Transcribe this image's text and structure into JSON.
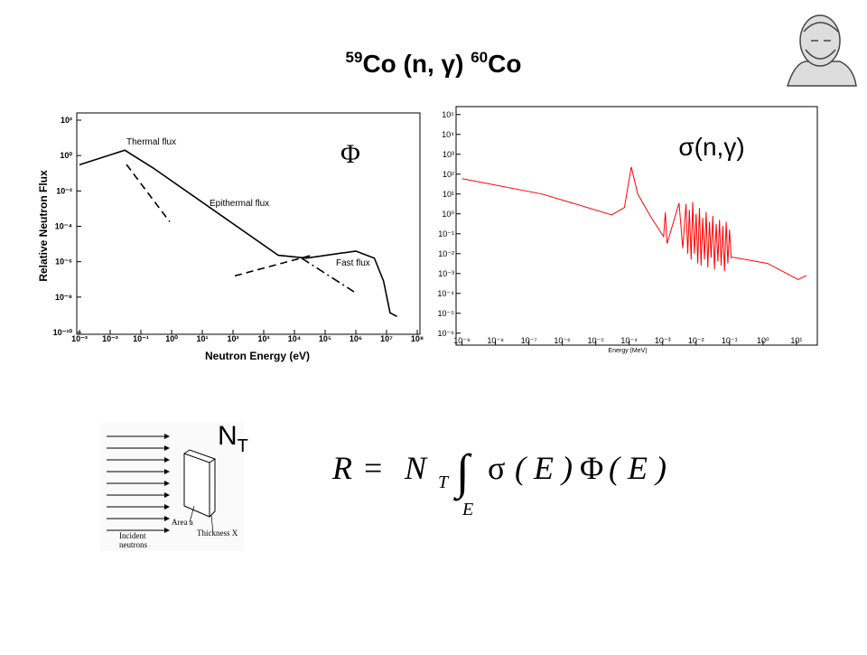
{
  "title": {
    "mass1": "59",
    "text1": "Co (n, γ) ",
    "mass2": "60",
    "text2": "Co"
  },
  "chart_data": [
    {
      "type": "line",
      "xscale": "log",
      "yscale": "log",
      "color": "#000000",
      "symbol": "Φ",
      "xlabel": "Neutron Energy (eV)",
      "ylabel": "Relative Neutron Flux",
      "annotations": [
        "Thermal flux",
        "Epithermal flux",
        "Fast flux"
      ],
      "xlim": [
        0.001,
        100000000
      ],
      "ylim": [
        1e-10,
        100
      ],
      "xticks": [
        {
          "value": 0.001,
          "label": "10⁻³"
        },
        {
          "value": 0.01,
          "label": "10⁻²"
        },
        {
          "value": 0.1,
          "label": "10⁻¹"
        },
        {
          "value": 1,
          "label": "10⁰"
        },
        {
          "value": 10,
          "label": "10¹"
        },
        {
          "value": 100,
          "label": "10²"
        },
        {
          "value": 1000,
          "label": "10³"
        },
        {
          "value": 10000,
          "label": "10⁴"
        },
        {
          "value": 100000,
          "label": "10⁵"
        },
        {
          "value": 1000000,
          "label": "10⁶"
        },
        {
          "value": 10000000,
          "label": "10⁷"
        },
        {
          "value": 100000000,
          "label": "10⁸"
        }
      ],
      "yticks": [
        {
          "value": 100,
          "label": "10²"
        },
        {
          "value": 1,
          "label": "10⁰"
        },
        {
          "value": 0.01,
          "label": "10⁻²"
        },
        {
          "value": 0.0001,
          "label": "10⁻⁴"
        },
        {
          "value": 1e-06,
          "label": "10⁻⁶"
        },
        {
          "value": 1e-08,
          "label": "10⁻⁸"
        },
        {
          "value": 1e-10,
          "label": "10⁻¹⁰"
        }
      ],
      "series": [
        {
          "color": "#000000",
          "dash": "solid",
          "x": [
            0.001,
            0.03,
            0.25,
            3000,
            25000,
            1000000,
            4000000,
            8000000,
            13000000,
            22000000
          ],
          "values": [
            0.3,
            2,
            0.2,
            2.3e-06,
            1.6e-06,
            4e-06,
            1.6e-06,
            8e-08,
            1.3e-09,
            8e-10
          ]
        },
        {
          "color": "#000000",
          "dash": "dashed",
          "x": [
            0.034,
            0.87
          ],
          "values": [
            0.31,
            0.00018
          ]
        },
        {
          "color": "#000000",
          "dash": "dashed",
          "x": [
            115,
            36000
          ],
          "values": [
            1.6e-07,
            2.3e-06
          ]
        },
        {
          "color": "#000000",
          "dash": "dashdot",
          "x": [
            17000,
            870000
          ],
          "values": [
            1.6e-06,
            2e-08
          ]
        }
      ]
    },
    {
      "type": "line",
      "xscale": "log",
      "yscale": "log",
      "color": "#ff0000",
      "symbol": "σ(n,γ)",
      "xlabel": "Energy (MeV)",
      "xlim": [
        8e-10,
        20
      ],
      "ylim": [
        2.5e-07,
        250000
      ],
      "xticks": [
        {
          "value": 1e-09,
          "label": "10⁻⁹"
        },
        {
          "value": 1e-08,
          "label": "10⁻⁸"
        },
        {
          "value": 1e-07,
          "label": "10⁻⁷"
        },
        {
          "value": 1e-06,
          "label": "10⁻⁶"
        },
        {
          "value": 1e-05,
          "label": "10⁻⁵"
        },
        {
          "value": 0.0001,
          "label": "10⁻⁴"
        },
        {
          "value": 0.001,
          "label": "10⁻³"
        },
        {
          "value": 0.01,
          "label": "10⁻²"
        },
        {
          "value": 0.1,
          "label": "10⁻¹"
        },
        {
          "value": 1,
          "label": "10⁰"
        },
        {
          "value": 10,
          "label": "10¹"
        }
      ],
      "yticks": [
        {
          "value": 100000,
          "label": "10⁵"
        },
        {
          "value": 10000,
          "label": "10⁴"
        },
        {
          "value": 1000,
          "label": "10³"
        },
        {
          "value": 100,
          "label": "10²"
        },
        {
          "value": 10,
          "label": "10¹"
        },
        {
          "value": 1,
          "label": "10⁰"
        },
        {
          "value": 0.1,
          "label": "10⁻¹"
        },
        {
          "value": 0.01,
          "label": "10⁻²"
        },
        {
          "value": 0.001,
          "label": "10⁻³"
        },
        {
          "value": 0.0001,
          "label": "10⁻⁴"
        },
        {
          "value": 1e-05,
          "label": "10⁻⁵"
        },
        {
          "value": 1e-06,
          "label": "10⁻⁶"
        }
      ],
      "series": [
        {
          "color": "#ff0000",
          "dash": "solid",
          "x": [
            1e-09,
            2.5e-07,
            3e-05,
            7.2e-05,
            0.000115,
            0.00018,
            0.00044,
            0.00107,
            0.0012,
            0.00135,
            0.0031,
            0.004,
            0.005,
            0.0056,
            0.0063,
            0.0071,
            0.0079,
            0.0089,
            0.01,
            0.0112,
            0.0126,
            0.0141,
            0.0158,
            0.0178,
            0.02,
            0.0224,
            0.0251,
            0.0282,
            0.0316,
            0.0355,
            0.0398,
            0.0447,
            0.0501,
            0.0562,
            0.0631,
            0.0708,
            0.0794,
            0.0891,
            0.1,
            0.112,
            0.126,
            1.38,
            11.2,
            20
          ],
          "values": [
            59,
            10,
            0.9,
            2.1,
            230,
            10,
            0.72,
            0.072,
            1.2,
            0.032,
            3.5,
            0.019,
            3.2,
            0.01,
            1.6,
            0.005,
            4,
            0.01,
            1,
            0.0032,
            2,
            0.0025,
            0.63,
            0.005,
            1.26,
            0.002,
            0.4,
            0.0063,
            0.8,
            0.0016,
            0.32,
            0.004,
            0.5,
            0.0025,
            0.25,
            0.0013,
            0.4,
            0.0032,
            0.16,
            0.0063,
            0.0066,
            0.0032,
            0.0005,
            0.0008
          ]
        }
      ]
    }
  ],
  "diagram": {
    "target": "N",
    "target_sub": "T",
    "area": "Area a",
    "thickness": "Thickness X",
    "incident1": "Incident",
    "incident2": "neutrons"
  },
  "formula": {
    "lhs": "R",
    "eq": "=",
    "n": "N",
    "sub": "T",
    "integral": "∫",
    "lower": "E",
    "sigma": "σ",
    "arg1": "( E )",
    "phi": "Φ",
    "arg2": "( E )"
  }
}
